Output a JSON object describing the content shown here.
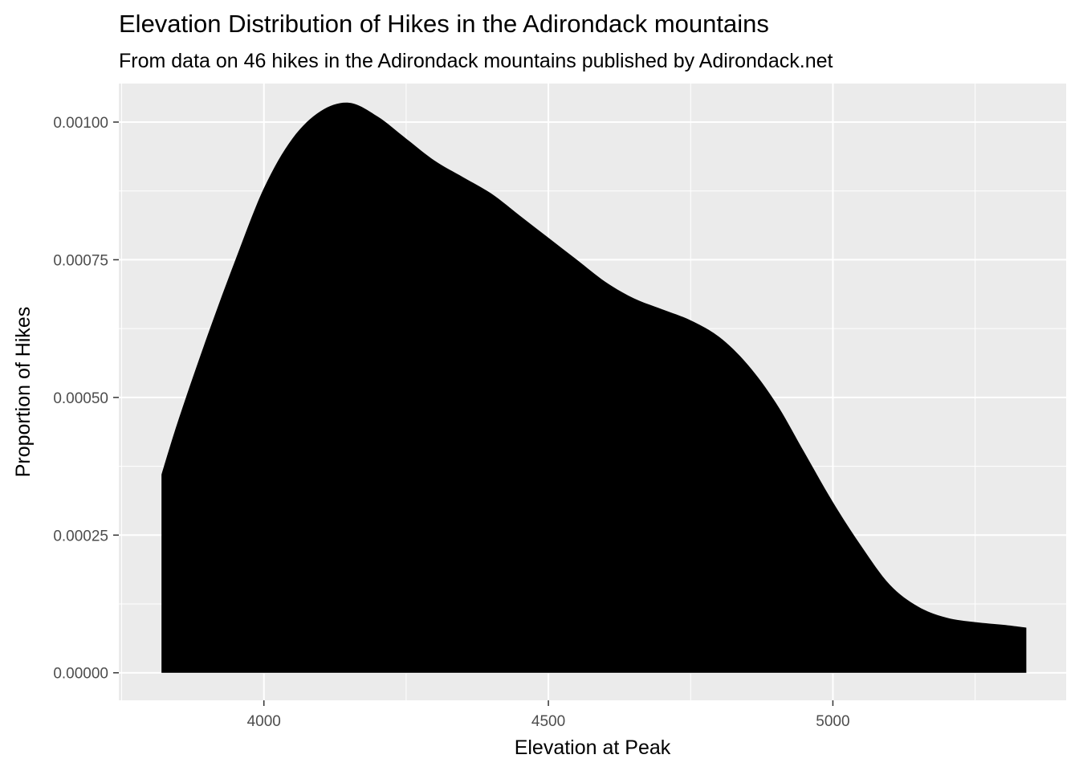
{
  "chart_data": {
    "type": "area",
    "title": "Elevation Distribution of Hikes in the Adirondack mountains",
    "subtitle": "From data on 46 hikes in the Adirondack mountains published by Adirondack.net",
    "xlabel": "Elevation at Peak",
    "ylabel": "Proportion of Hikes",
    "xlim": [
      3745,
      5410
    ],
    "ylim": [
      -5e-05,
      0.00107
    ],
    "x_ticks": [
      {
        "value": 4000,
        "label": "4000"
      },
      {
        "value": 4500,
        "label": "4500"
      },
      {
        "value": 5000,
        "label": "5000"
      }
    ],
    "x_minor_ticks": [
      3750,
      4250,
      4750,
      5250
    ],
    "y_ticks": [
      {
        "value": 0.0,
        "label": "0.00000"
      },
      {
        "value": 0.00025,
        "label": "0.00025"
      },
      {
        "value": 0.0005,
        "label": "0.00050"
      },
      {
        "value": 0.00075,
        "label": "0.00075"
      },
      {
        "value": 0.001,
        "label": "0.00100"
      }
    ],
    "y_minor_ticks": [
      0.000125,
      0.000375,
      0.000625,
      0.000875
    ],
    "grid": true,
    "fill_color": "#000000",
    "panel_color": "#ebebeb",
    "grid_color": "#ffffff",
    "series": [
      {
        "x": [
          3820,
          3850,
          3900,
          3950,
          4000,
          4050,
          4100,
          4150,
          4200,
          4250,
          4300,
          4350,
          4400,
          4450,
          4500,
          4550,
          4600,
          4650,
          4700,
          4750,
          4800,
          4850,
          4900,
          4950,
          5000,
          5050,
          5100,
          5150,
          5200,
          5250,
          5300,
          5340
        ],
        "y": [
          0.00036,
          0.00046,
          0.00061,
          0.00075,
          0.00088,
          0.00097,
          0.00102,
          0.001035,
          0.00101,
          0.00097,
          0.00093,
          0.0009,
          0.00087,
          0.00083,
          0.00079,
          0.00075,
          0.00071,
          0.00068,
          0.00066,
          0.00064,
          0.00061,
          0.00056,
          0.00049,
          0.0004,
          0.00031,
          0.00023,
          0.00016,
          0.00012,
          0.0001,
          9.2e-05,
          8.7e-05,
          8.2e-05
        ]
      }
    ]
  }
}
